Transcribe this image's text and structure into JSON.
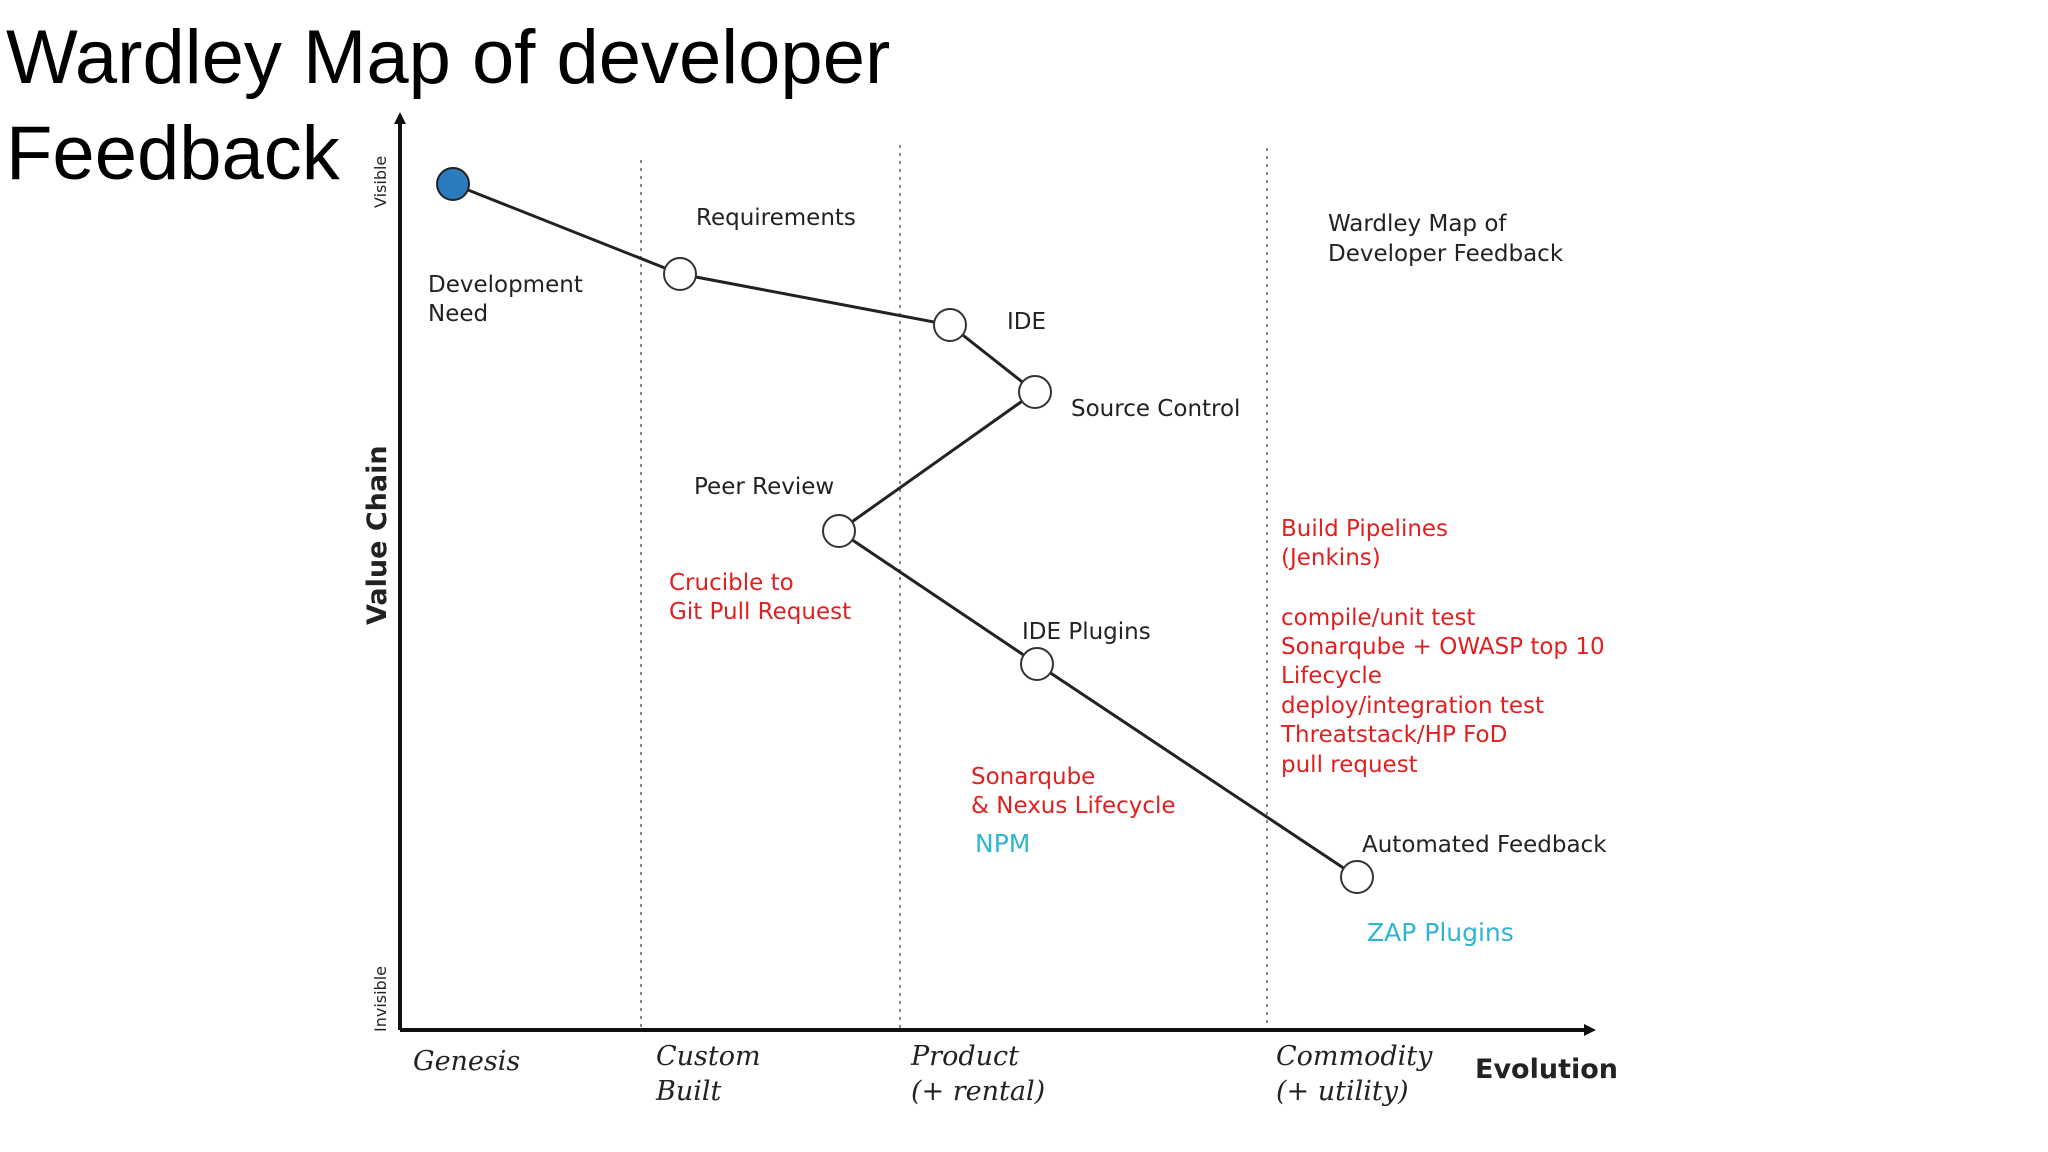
{
  "slide": {
    "title_line1": "Wardley Map of developer",
    "title_line2": "Feedback"
  },
  "map": {
    "title_line1": "Wardley Map of",
    "title_line2": "Developer Feedback",
    "y_axis": {
      "label": "Value Chain",
      "top_label": "Visible",
      "bottom_label": "Invisible"
    },
    "x_axis": {
      "label": "Evolution",
      "stages": [
        {
          "line1": "Genesis",
          "line2": ""
        },
        {
          "line1": "Custom",
          "line2": "Built"
        },
        {
          "line1": "Product",
          "line2": "(+ rental)"
        },
        {
          "line1": "Commodity",
          "line2": "(+ utility)"
        }
      ]
    },
    "nodes": [
      {
        "line1": "Development",
        "line2": "Need",
        "type": "user-need"
      },
      {
        "line1": "Requirements",
        "line2": "",
        "type": "component"
      },
      {
        "line1": "IDE",
        "line2": "",
        "type": "component"
      },
      {
        "line1": "Source Control",
        "line2": "",
        "type": "component"
      },
      {
        "line1": "Peer Review",
        "line2": "",
        "type": "component"
      },
      {
        "line1": "IDE Plugins",
        "line2": "",
        "type": "component"
      },
      {
        "line1": "Automated Feedback",
        "line2": "",
        "type": "component"
      }
    ],
    "annotations_red": {
      "crucible": [
        "Crucible to",
        "Git Pull Request"
      ],
      "sonar_nexus": [
        "Sonarqube",
        "& Nexus Lifecycle"
      ],
      "pipelines": [
        "Build Pipelines",
        "(Jenkins)",
        "compile/unit test",
        "Sonarqube + OWASP top 10",
        "Lifecycle",
        "deploy/integration test",
        "Threatstack/HP FoD",
        "pull request"
      ]
    },
    "annotations_cyan": {
      "npm": "NPM",
      "zap": "ZAP Plugins"
    },
    "colors": {
      "user_need_fill": "#2b7bbf",
      "line": "#222222",
      "red_text": "#e02020",
      "cyan_text": "#2fb5d2"
    }
  }
}
